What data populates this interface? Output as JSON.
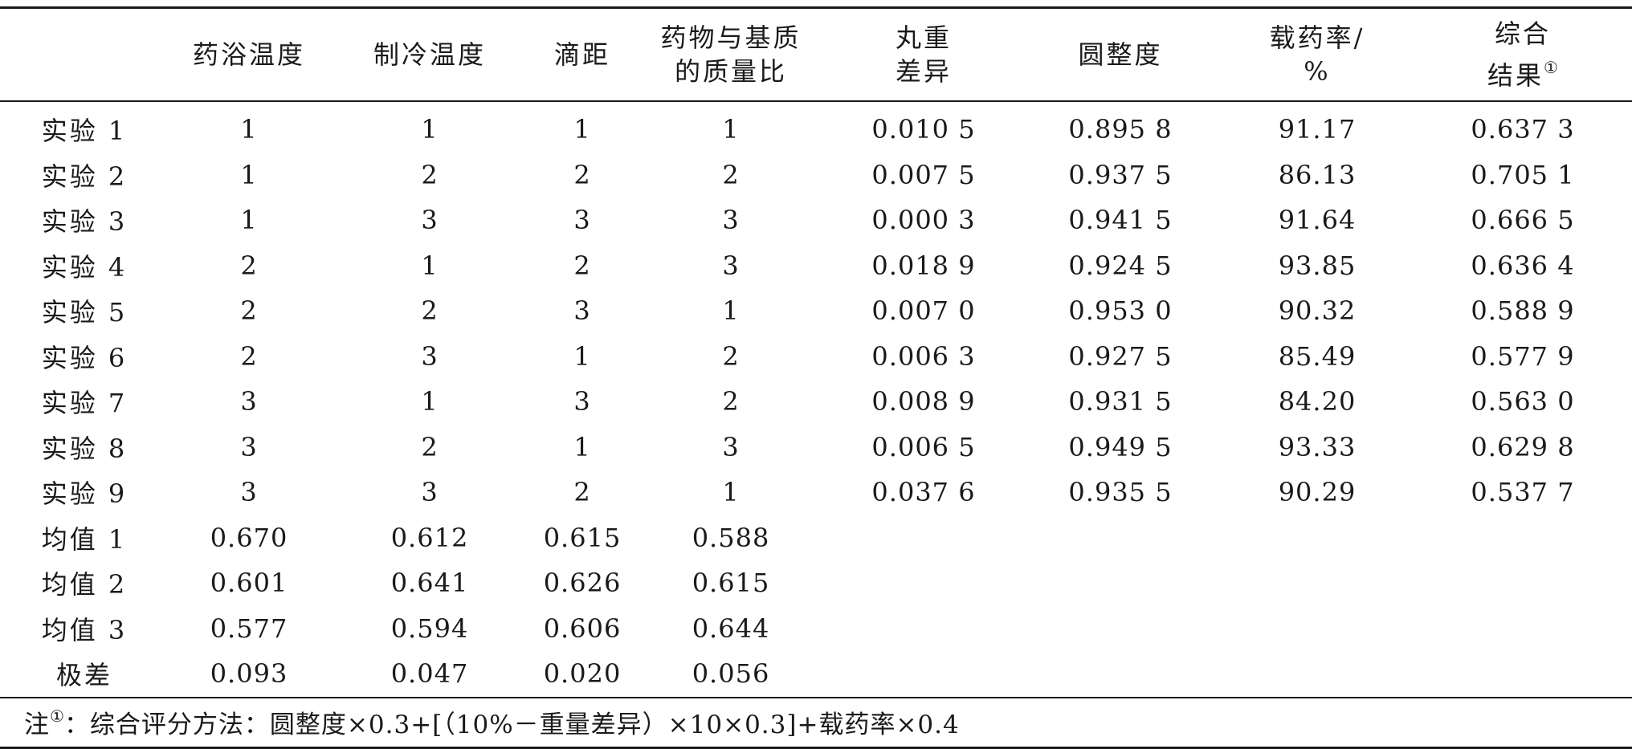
{
  "table": {
    "headers": [
      {
        "lines": [
          ""
        ]
      },
      {
        "lines": [
          "药浴温度"
        ]
      },
      {
        "lines": [
          "制冷温度"
        ]
      },
      {
        "lines": [
          "滴距"
        ]
      },
      {
        "lines": [
          "药物与基质",
          "的质量比"
        ]
      },
      {
        "lines": [
          "丸重",
          "差异"
        ]
      },
      {
        "lines": [
          "圆整度"
        ]
      },
      {
        "lines": [
          "载药率/",
          "%"
        ]
      },
      {
        "lines": [
          "综合",
          "结果"
        ],
        "footnote_mark": "①"
      }
    ],
    "rows": [
      [
        "实验 1",
        "1",
        "1",
        "1",
        "1",
        "0.010 5",
        "0.895 8",
        "91.17",
        "0.637 3"
      ],
      [
        "实验 2",
        "1",
        "2",
        "2",
        "2",
        "0.007 5",
        "0.937 5",
        "86.13",
        "0.705 1"
      ],
      [
        "实验 3",
        "1",
        "3",
        "3",
        "3",
        "0.000 3",
        "0.941 5",
        "91.64",
        "0.666 5"
      ],
      [
        "实验 4",
        "2",
        "1",
        "2",
        "3",
        "0.018 9",
        "0.924 5",
        "93.85",
        "0.636 4"
      ],
      [
        "实验 5",
        "2",
        "2",
        "3",
        "1",
        "0.007 0",
        "0.953 0",
        "90.32",
        "0.588 9"
      ],
      [
        "实验 6",
        "2",
        "3",
        "1",
        "2",
        "0.006 3",
        "0.927 5",
        "85.49",
        "0.577 9"
      ],
      [
        "实验 7",
        "3",
        "1",
        "3",
        "2",
        "0.008 9",
        "0.931 5",
        "84.20",
        "0.563 0"
      ],
      [
        "实验 8",
        "3",
        "2",
        "1",
        "3",
        "0.006 5",
        "0.949 5",
        "93.33",
        "0.629 8"
      ],
      [
        "实验 9",
        "3",
        "3",
        "2",
        "1",
        "0.037 6",
        "0.935 5",
        "90.29",
        "0.537 7"
      ],
      [
        "均值 1",
        "0.670",
        "0.612",
        "0.615",
        "0.588",
        "",
        "",
        "",
        ""
      ],
      [
        "均值 2",
        "0.601",
        "0.641",
        "0.626",
        "0.615",
        "",
        "",
        "",
        ""
      ],
      [
        "均值 3",
        "0.577",
        "0.594",
        "0.606",
        "0.644",
        "",
        "",
        "",
        ""
      ],
      [
        "极差",
        "0.093",
        "0.047",
        "0.020",
        "0.056",
        "",
        "",
        "",
        ""
      ]
    ],
    "footnote": {
      "prefix": "注",
      "mark": "①",
      "text": "：综合评分方法：圆整度×0.3+[（10%－重量差异）×10×0.3]+载药率×0.4"
    }
  }
}
